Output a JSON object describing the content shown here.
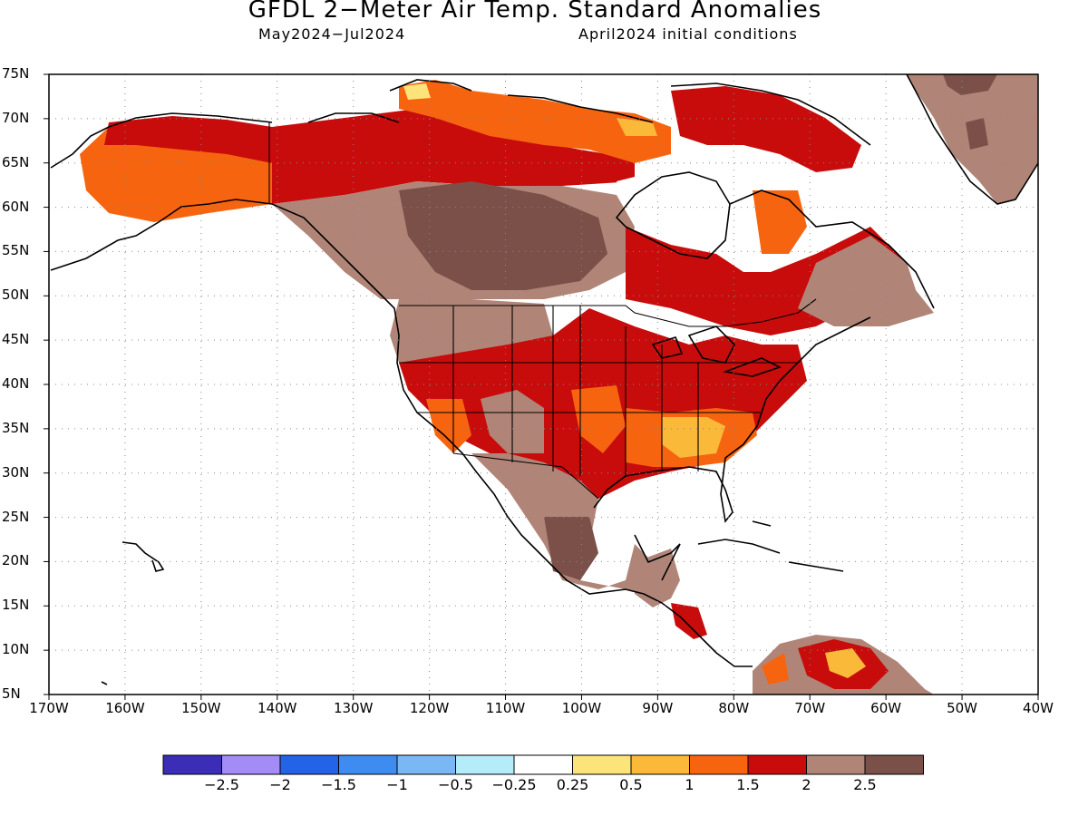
{
  "title": "GFDL 2−Meter Air Temp. Standard Anomalies",
  "subtitle_left": "May2024−Jul2024",
  "subtitle_right": "April2024 initial conditions",
  "lat_ticks": [
    "75N",
    "70N",
    "65N",
    "60N",
    "55N",
    "50N",
    "45N",
    "40N",
    "35N",
    "30N",
    "25N",
    "20N",
    "15N",
    "10N",
    "5N"
  ],
  "lon_ticks": [
    "170W",
    "160W",
    "150W",
    "140W",
    "130W",
    "120W",
    "110W",
    "100W",
    "90W",
    "80W",
    "70W",
    "60W",
    "50W",
    "40W"
  ],
  "colorbar": {
    "colors": [
      "#3b2db5",
      "#a38cf5",
      "#2463e6",
      "#3f8cf0",
      "#7ab8f5",
      "#b4ecfa",
      "#ffffff",
      "#fde47a",
      "#fbb93a",
      "#f7640f",
      "#c80c0c",
      "#b08578",
      "#7a5048"
    ],
    "labels": [
      "−2.5",
      "−2",
      "−1.5",
      "−1",
      "−0.5",
      "−0.25",
      "0.25",
      "0.5",
      "1",
      "1.5",
      "2",
      "2.5"
    ]
  },
  "map": {
    "lon_range": [
      -170,
      -40
    ],
    "lat_range": [
      5,
      75
    ],
    "grid": true,
    "projection": "lat-lon"
  }
}
